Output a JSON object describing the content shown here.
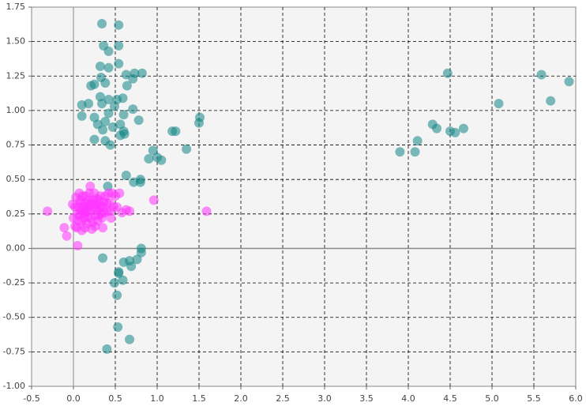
{
  "chart_data": {
    "type": "scatter",
    "xlim": [
      -0.5,
      6.0
    ],
    "ylim": [
      -1.0,
      1.75
    ],
    "xticks": [
      -0.5,
      {
        "value": 0,
        "label": "0.0"
      },
      0.5,
      {
        "value": 1,
        "label": "1.0"
      },
      1.5,
      {
        "value": 2,
        "label": "2.0"
      },
      2.5,
      {
        "value": 3,
        "label": "3.0"
      },
      3.5,
      {
        "value": 4,
        "label": "4.0"
      },
      4.5,
      {
        "value": 5,
        "label": "5.0"
      },
      5.5,
      {
        "value": 6,
        "label": "6.0"
      }
    ],
    "yticks": [
      1.75,
      {
        "value": 1.5,
        "label": "1.50"
      },
      1.25,
      {
        "value": 1,
        "label": "1.00"
      },
      0.75,
      {
        "value": 0.5,
        "label": "0.50"
      },
      0.25,
      {
        "value": 0,
        "label": "0.00"
      },
      -0.25,
      {
        "value": -0.5,
        "label": "-0.50"
      },
      -0.75,
      {
        "value": -1,
        "label": "-1.00"
      }
    ],
    "grid": true,
    "series": [
      {
        "color": "#138585",
        "x": [
          0.34,
          0.54,
          0.36,
          0.54,
          0.42,
          0.54,
          0.32,
          0.42,
          0.63,
          0.73,
          0.82,
          0.71,
          0.33,
          0.38,
          0.21,
          0.25,
          0.64,
          0.32,
          0.42,
          0.52,
          0.59,
          0.1,
          0.18,
          0.34,
          0.49,
          0.71,
          0.1,
          0.25,
          0.42,
          0.6,
          0.78,
          0.29,
          0.38,
          0.47,
          0.56,
          0.35,
          0.6,
          1.18,
          1.22,
          1.5,
          1.51,
          0.25,
          0.38,
          0.44,
          0.56,
          0.61,
          1.35,
          0.95,
          0.9,
          1.0,
          1.05,
          0.63,
          0.8,
          0.72,
          0.8,
          0.41,
          0.81,
          0.81,
          0.35,
          0.6,
          0.67,
          0.76,
          0.69,
          0.54,
          0.54,
          0.59,
          0.49,
          0.52,
          0.53,
          0.4,
          0.67,
          3.9,
          4.08,
          4.11,
          4.29,
          4.34,
          4.47,
          4.5,
          4.56,
          4.66,
          5.08,
          5.59,
          5.7,
          5.92
        ],
        "y": [
          1.63,
          1.62,
          1.47,
          1.47,
          1.43,
          1.34,
          1.32,
          1.31,
          1.26,
          1.27,
          1.27,
          1.23,
          1.24,
          1.2,
          1.18,
          1.19,
          1.18,
          1.1,
          1.08,
          1.08,
          1.09,
          1.04,
          1.05,
          1.05,
          1.03,
          1.01,
          0.96,
          0.95,
          0.98,
          0.97,
          0.93,
          0.9,
          0.92,
          0.88,
          0.9,
          0.86,
          0.85,
          0.85,
          0.85,
          0.91,
          0.95,
          0.79,
          0.78,
          0.75,
          0.82,
          0.83,
          0.72,
          0.71,
          0.65,
          0.66,
          0.64,
          0.53,
          0.5,
          0.48,
          0.48,
          0.45,
          0.0,
          -0.03,
          -0.07,
          -0.1,
          -0.09,
          -0.08,
          -0.13,
          -0.17,
          -0.18,
          -0.23,
          -0.25,
          -0.34,
          -0.57,
          -0.73,
          -0.66,
          0.7,
          0.7,
          0.78,
          0.9,
          0.87,
          1.27,
          0.85,
          0.84,
          0.87,
          1.05,
          1.26,
          1.07,
          1.21
        ]
      },
      {
        "color": "#ff33ff",
        "x": [
          -0.31,
          1.59,
          0.96,
          0.05,
          -0.08,
          -0.11,
          0.67,
          0.63,
          0.35,
          0.02,
          0.05,
          0.08,
          0.1,
          0.12,
          0.15,
          0.18,
          0.2,
          0.22,
          0.25,
          0.28,
          0.3,
          0.33,
          0.35,
          0.38,
          0.4,
          0.43,
          0.46,
          0.5,
          0.55,
          0.48,
          0.45,
          0.42,
          0.03,
          0.06,
          0.09,
          0.11,
          0.13,
          0.14,
          0.16,
          0.17,
          0.19,
          0.21,
          0.23,
          0.24,
          0.26,
          0.27,
          0.29,
          0.31,
          0.32,
          0.34,
          0.36,
          0.0,
          -0.01,
          0.04,
          0.07,
          0.1,
          0.12,
          0.15,
          0.18,
          0.2,
          0.22,
          0.25,
          0.28,
          0.3,
          0.33,
          0.37,
          0.4,
          0.44,
          0.52,
          0.58,
          0.02,
          0.06,
          0.09,
          0.14,
          0.17,
          0.26,
          0.19,
          0.11,
          0.07
        ],
        "y": [
          0.27,
          0.27,
          0.35,
          0.02,
          0.09,
          0.15,
          0.27,
          0.28,
          0.15,
          0.3,
          0.25,
          0.35,
          0.2,
          0.3,
          0.38,
          0.27,
          0.22,
          0.33,
          0.4,
          0.28,
          0.35,
          0.25,
          0.3,
          0.38,
          0.27,
          0.33,
          0.4,
          0.38,
          0.4,
          0.3,
          0.22,
          0.4,
          0.37,
          0.2,
          0.28,
          0.38,
          0.22,
          0.33,
          0.18,
          0.3,
          0.4,
          0.28,
          0.19,
          0.35,
          0.24,
          0.32,
          0.2,
          0.29,
          0.38,
          0.22,
          0.34,
          0.22,
          0.32,
          0.15,
          0.4,
          0.13,
          0.25,
          0.27,
          0.35,
          0.45,
          0.14,
          0.3,
          0.36,
          0.24,
          0.31,
          0.26,
          0.33,
          0.27,
          0.3,
          0.26,
          0.16,
          0.3,
          0.33,
          0.15,
          0.23,
          0.16,
          0.32,
          0.27,
          0.24
        ]
      }
    ]
  }
}
